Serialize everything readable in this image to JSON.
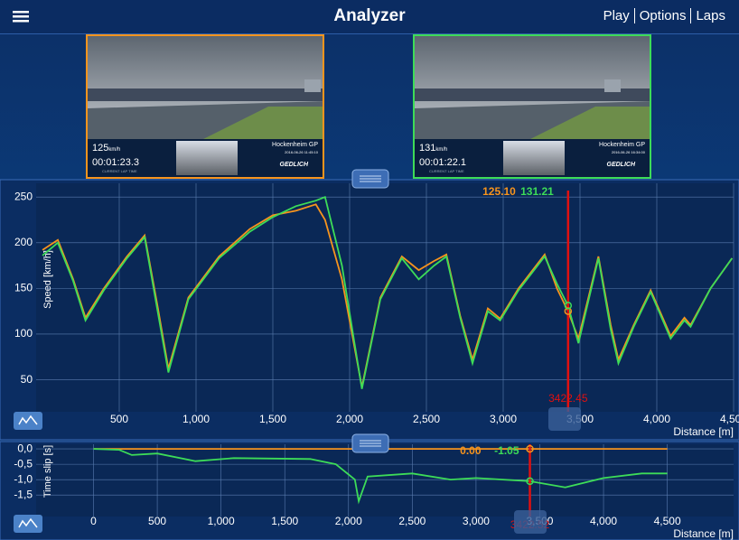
{
  "header": {
    "title": "Analyzer",
    "menu": [
      "Play",
      "Options",
      "Laps"
    ]
  },
  "videos": [
    {
      "speed": 125,
      "unit": "km/h",
      "lap_time": "00:01:23.3",
      "lap_time_caption": "CURRENT LAP TIME",
      "track": "Hockenheim GP",
      "date": "2016-06-26 11:45:10",
      "brand": "GEDLICH",
      "color": "#f7941d"
    },
    {
      "speed": 131,
      "unit": "km/h",
      "lap_time": "00:01:22.1",
      "lap_time_caption": "CURRENT LAP TIME",
      "track": "Hockenheim GP",
      "date": "2016-06-26 16:34:00",
      "brand": "GEDLICH",
      "color": "#3ddc58"
    }
  ],
  "chart_data": [
    {
      "type": "line",
      "ylabel": "Speed [km/h]",
      "xlabel": "Distance [m]",
      "x": [
        0,
        100,
        200,
        280,
        400,
        550,
        665,
        750,
        820,
        950,
        1150,
        1350,
        1500,
        1650,
        1780,
        1840,
        1950,
        2080,
        2200,
        2340,
        2450,
        2550,
        2630,
        2720,
        2800,
        2900,
        2980,
        3100,
        3270,
        3350,
        3422,
        3490,
        3620,
        3700,
        3750,
        3850,
        3960,
        4090,
        4180,
        4220,
        4350,
        4490
      ],
      "series": [
        {
          "color": "#f7941d",
          "values": [
            192,
            203,
            160,
            118,
            150,
            185,
            208,
            130,
            62,
            140,
            185,
            215,
            230,
            235,
            242,
            225,
            160,
            42,
            140,
            185,
            170,
            180,
            187,
            120,
            72,
            128,
            117,
            150,
            187,
            150,
            125.1,
            95,
            185,
            110,
            72,
            110,
            148,
            98,
            118,
            110,
            150,
            183
          ]
        },
        {
          "color": "#3ddc58",
          "values": [
            186,
            200,
            158,
            115,
            148,
            183,
            206,
            125,
            58,
            138,
            183,
            212,
            228,
            240,
            246,
            250,
            175,
            40,
            138,
            183,
            160,
            175,
            185,
            118,
            68,
            125,
            115,
            148,
            185,
            155,
            131.21,
            90,
            183,
            105,
            68,
            108,
            146,
            95,
            115,
            108,
            150,
            183
          ]
        }
      ],
      "xlim": [
        0,
        4500
      ],
      "ylim": [
        15,
        265
      ],
      "xticks": [
        500,
        {
          "value": 1000,
          "label": "1,000"
        },
        {
          "value": 1500,
          "label": "1,500"
        },
        {
          "value": 2000,
          "label": "2,000"
        },
        {
          "value": 2500,
          "label": "2,500"
        },
        {
          "value": 3000,
          "label": "3,000"
        },
        {
          "value": 3500,
          "label": "3,500"
        },
        {
          "value": 4000,
          "label": "4,000"
        },
        {
          "value": 4500,
          "label": "4,500"
        }
      ],
      "yticks": [
        50,
        100,
        150,
        200,
        250
      ],
      "grid": true,
      "cursor": {
        "x": 3422.45,
        "values": [
          125.1,
          131.21
        ],
        "value_labels": [
          "125.10",
          "131.21"
        ]
      }
    },
    {
      "type": "line",
      "ylabel": "Time slip [s]",
      "xlabel": "Distance [m]",
      "series": [
        {
          "color": "#f7941d",
          "x": [
            0,
            4500
          ],
          "values": [
            0,
            0
          ]
        },
        {
          "color": "#3ddc58",
          "x": [
            0,
            200,
            300,
            500,
            800,
            1100,
            1700,
            1900,
            2050,
            2080,
            2150,
            2500,
            2800,
            3000,
            3422,
            3700,
            4000,
            4300,
            4500
          ],
          "values": [
            0,
            -0.03,
            -0.2,
            -0.15,
            -0.4,
            -0.3,
            -0.33,
            -0.5,
            -1.0,
            -1.7,
            -0.9,
            -0.8,
            -1.0,
            -0.95,
            -1.05,
            -1.25,
            -0.95,
            -0.8,
            -0.8
          ]
        }
      ],
      "xlim": [
        -450,
        5020
      ],
      "ylim": [
        -2.2,
        0.15
      ],
      "xticks": [
        0,
        500,
        {
          "value": 1000,
          "label": "1,000"
        },
        {
          "value": 1500,
          "label": "1,500"
        },
        {
          "value": 2000,
          "label": "2,000"
        },
        {
          "value": 2500,
          "label": "2,500"
        },
        {
          "value": 3000,
          "label": "3,000"
        },
        {
          "value": 3500,
          "label": "3,500"
        },
        {
          "value": 4000,
          "label": "4,000"
        },
        {
          "value": 4500,
          "label": "4,500"
        }
      ],
      "yticks": [
        {
          "value": 0,
          "label": "0,0"
        },
        {
          "value": -0.5,
          "label": "-0,5"
        },
        {
          "value": -1,
          "label": "-1,0"
        },
        {
          "value": -1.5,
          "label": "-1,5"
        }
      ],
      "grid": true,
      "cursor": {
        "x": 3422.52,
        "values": [
          0,
          -1.05
        ],
        "value_labels": [
          "0.00",
          "-1.05"
        ]
      }
    }
  ]
}
